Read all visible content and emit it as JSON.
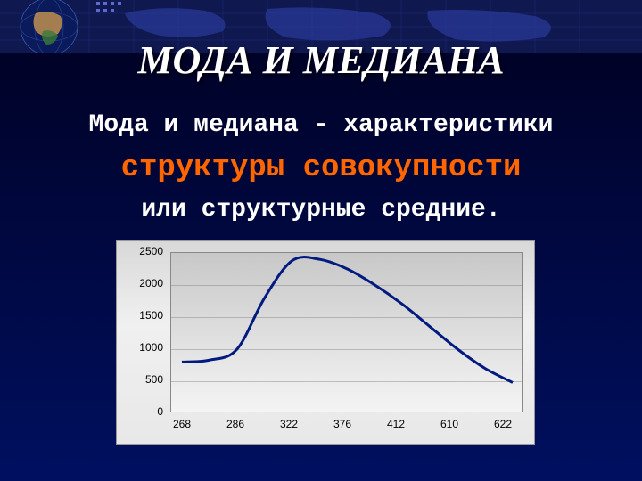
{
  "title": {
    "text": "МОДА И МЕДИАНА",
    "fontsize": 44,
    "color": "#ffffff"
  },
  "line1": {
    "text": "Мода и медиана - характеристики",
    "fontsize": 28,
    "color": "#ffffff"
  },
  "line2": {
    "text": "структуры совокупности",
    "fontsize": 34,
    "color": "#ff6600"
  },
  "line3": {
    "text": "или структурные средние.",
    "fontsize": 28,
    "color": "#ffffff"
  },
  "header": {
    "globe_bg": "#1a2a6a",
    "map_fill": "#2a3a8a",
    "grid_color": "#3a4aaa",
    "dots": "#4a5aca"
  },
  "chart": {
    "type": "line",
    "background_top": "#d8d8d8",
    "background_bottom": "#f0f0f0",
    "plot_bg_top": "#c8c8c8",
    "plot_bg_bottom": "#f4f4f4",
    "line_color": "#001a80",
    "line_width": 3,
    "ylim": [
      0,
      2500
    ],
    "ytick_step": 500,
    "yticks": [
      "0",
      "500",
      "1000",
      "1500",
      "2000",
      "2500"
    ],
    "xticks": [
      "268",
      "286",
      "322",
      "376",
      "412",
      "610",
      "622"
    ],
    "xtick_fontsize": 12,
    "ytick_fontsize": 12,
    "data_y": [
      800,
      830,
      1000,
      1800,
      2380,
      2400,
      2250,
      2000,
      1700,
      1350,
      1000,
      700,
      480
    ]
  }
}
